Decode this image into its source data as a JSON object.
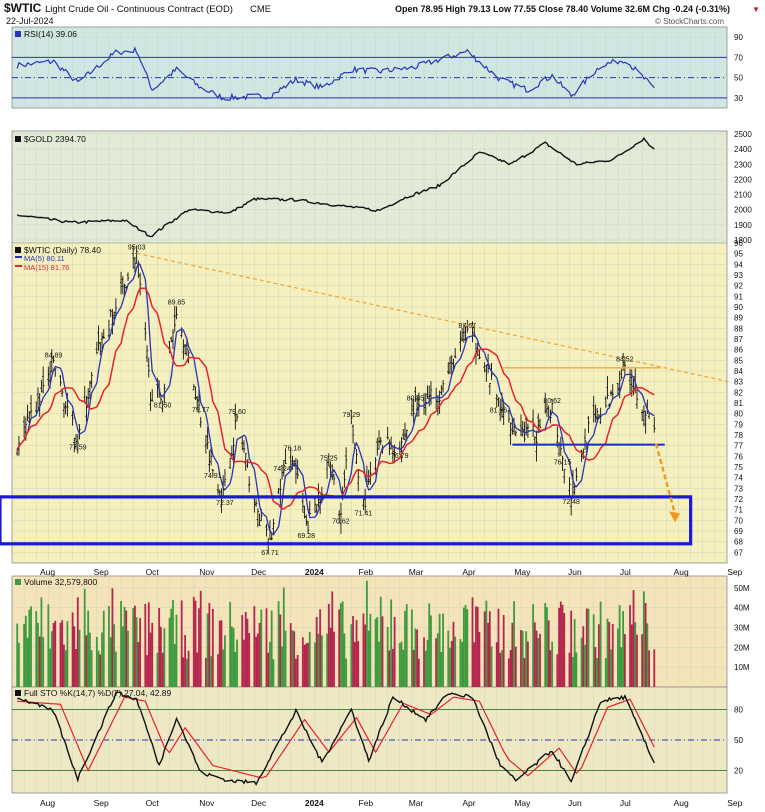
{
  "header": {
    "symbol": "$WTIC",
    "name": "Light Crude Oil - Continuous Contract (EOD)",
    "exchange": "CME",
    "date": "22-Jul-2024",
    "stats": "Open 78.95  High 79.13  Low 77.55  Close 78.40  Volume 32.6M  Chg -0.24 (-0.31%)",
    "change_arrow": "▼",
    "watermark": "© StockCharts.com"
  },
  "colors": {
    "panel_rsi": "#cfe6e3",
    "panel_gold": "#e3ead7",
    "panel_price": "#f6f0bf",
    "panel_volume": "#f5e3ba",
    "panel_sto": "#efe8c4",
    "grid": "#c9d9b8",
    "ma5": "#2a35b5",
    "ma15": "#e8232a",
    "candle": "#111111",
    "vol_up": "#3e9a3e",
    "vol_down": "#b3254e",
    "trendline": "#f2a93b",
    "support": "#1a2ec8",
    "box": "#1a1ad6",
    "forecast_arrow": "#f29a1c"
  },
  "panels": {
    "rsi": {
      "label": "RSI(14) 39.06",
      "ticks": [
        90,
        70,
        50,
        30
      ],
      "levels": [
        70,
        50,
        30
      ]
    },
    "gold": {
      "label": "$GOLD 2394.70",
      "ticks": [
        2500,
        2400,
        2300,
        2200,
        2100,
        2000,
        1900,
        1800
      ]
    },
    "price": {
      "label": "$WTIC (Daily) 78.40",
      "ma5_label": "MA(5) 80.11",
      "ma15_label": "MA(15) 81.76",
      "yrange": [
        66,
        96
      ]
    },
    "volume": {
      "label": "Volume 32,579,800",
      "ticks": [
        "50M",
        "40M",
        "30M",
        "20M",
        "10M"
      ]
    },
    "sto": {
      "label": "Full STO %K(14,7) %D(7) 27.04, 42.89",
      "ticks": [
        80,
        50,
        20
      ]
    }
  },
  "x_axis": {
    "labels": [
      "Aug",
      "Sep",
      "Oct",
      "Nov",
      "Dec",
      "2024",
      "Feb",
      "Mar",
      "Apr",
      "May",
      "Jun",
      "Jul",
      "Aug",
      "Sep"
    ]
  },
  "chart_data": {
    "type": "line",
    "title": "$WTIC Light Crude Oil - Continuous Contract (EOD)",
    "price_series_approx": [
      [
        "2023-07-20",
        77.0
      ],
      [
        "2023-08-01",
        81.0
      ],
      [
        "2023-08-10",
        84.9
      ],
      [
        "2023-08-18",
        80.0
      ],
      [
        "2023-08-24",
        77.6
      ],
      [
        "2023-09-05",
        86.0
      ],
      [
        "2023-09-15",
        90.0
      ],
      [
        "2023-09-27",
        95.03
      ],
      [
        "2023-10-05",
        82.0
      ],
      [
        "2023-10-12",
        81.5
      ],
      [
        "2023-10-20",
        89.85
      ],
      [
        "2023-10-27",
        85.0
      ],
      [
        "2023-11-03",
        79.77
      ],
      [
        "2023-11-10",
        74.91
      ],
      [
        "2023-11-16",
        72.37
      ],
      [
        "2023-11-24",
        79.6
      ],
      [
        "2023-12-05",
        71.0
      ],
      [
        "2023-12-13",
        67.71
      ],
      [
        "2023-12-20",
        74.24
      ],
      [
        "2023-12-26",
        76.18
      ],
      [
        "2024-01-03",
        69.28
      ],
      [
        "2024-01-10",
        72.0
      ],
      [
        "2024-01-16",
        75.25
      ],
      [
        "2024-01-23",
        70.62
      ],
      [
        "2024-01-29",
        79.29
      ],
      [
        "2024-02-05",
        71.41
      ],
      [
        "2024-02-15",
        77.5
      ],
      [
        "2024-02-26",
        76.79
      ],
      [
        "2024-03-06",
        80.85
      ],
      [
        "2024-03-20",
        82.0
      ],
      [
        "2024-04-05",
        87.67
      ],
      [
        "2024-04-12",
        86.0
      ],
      [
        "2024-04-23",
        81.06
      ],
      [
        "2024-05-03",
        78.5
      ],
      [
        "2024-05-15",
        78.0
      ],
      [
        "2024-05-24",
        80.62
      ],
      [
        "2024-05-30",
        76.15
      ],
      [
        "2024-06-04",
        72.48
      ],
      [
        "2024-06-14",
        78.5
      ],
      [
        "2024-06-25",
        81.0
      ],
      [
        "2024-07-05",
        84.52
      ],
      [
        "2024-07-12",
        82.0
      ],
      [
        "2024-07-22",
        78.4
      ]
    ],
    "annotations": [
      {
        "date": "2023-08-10",
        "price": 84.89,
        "text": "84.89",
        "pos": "above"
      },
      {
        "date": "2023-08-24",
        "price": 77.59,
        "text": "77.59",
        "pos": "below"
      },
      {
        "date": "2023-09-27",
        "price": 95.03,
        "text": "95.03",
        "pos": "above"
      },
      {
        "date": "2023-10-12",
        "price": 81.5,
        "text": "81.50",
        "pos": "below"
      },
      {
        "date": "2023-10-20",
        "price": 89.85,
        "text": "89.85",
        "pos": "above"
      },
      {
        "date": "2023-11-03",
        "price": 79.77,
        "text": "79.77",
        "pos": "above"
      },
      {
        "date": "2023-11-10",
        "price": 74.91,
        "text": "74.91",
        "pos": "below"
      },
      {
        "date": "2023-11-24",
        "price": 79.6,
        "text": "79.60",
        "pos": "above"
      },
      {
        "date": "2023-11-17",
        "price": 72.37,
        "text": "72.37",
        "pos": "below"
      },
      {
        "date": "2023-12-13",
        "price": 67.71,
        "text": "67.71",
        "pos": "below"
      },
      {
        "date": "2023-12-26",
        "price": 76.18,
        "text": "76.18",
        "pos": "above"
      },
      {
        "date": "2023-12-20",
        "price": 74.24,
        "text": "74.24",
        "pos": "above"
      },
      {
        "date": "2024-01-03",
        "price": 69.28,
        "text": "69.28",
        "pos": "below"
      },
      {
        "date": "2024-01-16",
        "price": 75.25,
        "text": "75.25",
        "pos": "above"
      },
      {
        "date": "2024-01-23",
        "price": 70.62,
        "text": "70.62",
        "pos": "below"
      },
      {
        "date": "2024-01-29",
        "price": 79.29,
        "text": "79.29",
        "pos": "above"
      },
      {
        "date": "2024-02-05",
        "price": 71.41,
        "text": "71.41",
        "pos": "below"
      },
      {
        "date": "2024-02-26",
        "price": 76.79,
        "text": "76.79",
        "pos": "below"
      },
      {
        "date": "2024-03-06",
        "price": 80.85,
        "text": "80.85",
        "pos": "above"
      },
      {
        "date": "2024-04-05",
        "price": 87.67,
        "text": "87.67",
        "pos": "above"
      },
      {
        "date": "2024-04-23",
        "price": 81.06,
        "text": "81.06",
        "pos": "below"
      },
      {
        "date": "2024-05-24",
        "price": 80.62,
        "text": "80.62",
        "pos": "above"
      },
      {
        "date": "2024-05-30",
        "price": 76.15,
        "text": "76.15",
        "pos": "below"
      },
      {
        "date": "2024-06-04",
        "price": 72.48,
        "text": "72.48",
        "pos": "below"
      },
      {
        "date": "2024-07-05",
        "price": 84.52,
        "text": "84.52",
        "pos": "above"
      }
    ],
    "gold_series_approx": [
      [
        "2023-07-20",
        1965
      ],
      [
        "2023-08-20",
        1915
      ],
      [
        "2023-09-20",
        1930
      ],
      [
        "2023-10-05",
        1825
      ],
      [
        "2023-10-27",
        2000
      ],
      [
        "2023-11-20",
        1980
      ],
      [
        "2023-12-04",
        2070
      ],
      [
        "2023-12-28",
        2065
      ],
      [
        "2024-01-20",
        2030
      ],
      [
        "2024-02-14",
        1995
      ],
      [
        "2024-03-01",
        2085
      ],
      [
        "2024-03-20",
        2160
      ],
      [
        "2024-04-12",
        2380
      ],
      [
        "2024-04-30",
        2300
      ],
      [
        "2024-05-20",
        2440
      ],
      [
        "2024-06-07",
        2300
      ],
      [
        "2024-06-28",
        2330
      ],
      [
        "2024-07-16",
        2470
      ],
      [
        "2024-07-22",
        2395
      ]
    ],
    "rsi_series_approx": [
      [
        "2023-07-20",
        62
      ],
      [
        "2023-08-10",
        66
      ],
      [
        "2023-08-24",
        45
      ],
      [
        "2023-09-15",
        75
      ],
      [
        "2023-09-27",
        77
      ],
      [
        "2023-10-06",
        38
      ],
      [
        "2023-10-20",
        58
      ],
      [
        "2023-11-03",
        40
      ],
      [
        "2023-11-16",
        30
      ],
      [
        "2023-12-13",
        32
      ],
      [
        "2023-12-28",
        48
      ],
      [
        "2024-01-12",
        40
      ],
      [
        "2024-01-29",
        58
      ],
      [
        "2024-02-14",
        56
      ],
      [
        "2024-03-05",
        60
      ],
      [
        "2024-04-05",
        76
      ],
      [
        "2024-04-24",
        48
      ],
      [
        "2024-05-10",
        38
      ],
      [
        "2024-05-24",
        52
      ],
      [
        "2024-06-04",
        32
      ],
      [
        "2024-06-21",
        62
      ],
      [
        "2024-07-05",
        68
      ],
      [
        "2024-07-22",
        39
      ]
    ],
    "sto_k_approx": [
      [
        "2023-07-20",
        92
      ],
      [
        "2023-08-10",
        78
      ],
      [
        "2023-08-24",
        12
      ],
      [
        "2023-09-15",
        96
      ],
      [
        "2023-09-27",
        90
      ],
      [
        "2023-10-10",
        25
      ],
      [
        "2023-10-20",
        72
      ],
      [
        "2023-11-03",
        18
      ],
      [
        "2023-11-20",
        10
      ],
      [
        "2023-12-05",
        8
      ],
      [
        "2023-12-28",
        78
      ],
      [
        "2024-01-12",
        28
      ],
      [
        "2024-01-29",
        80
      ],
      [
        "2024-02-08",
        30
      ],
      [
        "2024-02-22",
        92
      ],
      [
        "2024-03-12",
        70
      ],
      [
        "2024-03-25",
        96
      ],
      [
        "2024-04-08",
        92
      ],
      [
        "2024-04-24",
        25
      ],
      [
        "2024-05-03",
        10
      ],
      [
        "2024-05-24",
        40
      ],
      [
        "2024-06-04",
        8
      ],
      [
        "2024-06-21",
        88
      ],
      [
        "2024-07-05",
        92
      ],
      [
        "2024-07-22",
        27
      ]
    ],
    "sto_d_approx": [
      [
        "2023-07-20",
        88
      ],
      [
        "2023-08-14",
        85
      ],
      [
        "2023-08-30",
        20
      ],
      [
        "2023-09-20",
        92
      ],
      [
        "2023-10-02",
        88
      ],
      [
        "2023-10-15",
        35
      ],
      [
        "2023-10-25",
        62
      ],
      [
        "2023-11-10",
        25
      ],
      [
        "2023-12-10",
        12
      ],
      [
        "2024-01-02",
        70
      ],
      [
        "2024-01-16",
        38
      ],
      [
        "2024-02-01",
        72
      ],
      [
        "2024-02-12",
        38
      ],
      [
        "2024-02-28",
        86
      ],
      [
        "2024-03-15",
        75
      ],
      [
        "2024-03-28",
        92
      ],
      [
        "2024-04-12",
        88
      ],
      [
        "2024-04-28",
        32
      ],
      [
        "2024-05-10",
        15
      ],
      [
        "2024-05-28",
        42
      ],
      [
        "2024-06-08",
        15
      ],
      [
        "2024-06-25",
        82
      ],
      [
        "2024-07-08",
        90
      ],
      [
        "2024-07-22",
        43
      ]
    ],
    "trendline": [
      [
        "2023-09-27",
        95.03
      ],
      [
        "2024-09-03",
        83.0
      ]
    ],
    "resistance": [
      [
        "2024-04-25",
        84.3
      ],
      [
        "2024-07-26",
        84.3
      ]
    ],
    "support": [
      [
        "2024-05-01",
        77.1
      ],
      [
        "2024-07-28",
        77.1
      ]
    ],
    "target_box": {
      "x_from": "2023-07-10",
      "x_to": "2024-08-12",
      "y_from": 67.8,
      "y_to": 72.2
    },
    "forecast": [
      [
        "2024-07-23",
        77.2
      ],
      [
        "2024-08-03",
        70.0
      ]
    ]
  }
}
